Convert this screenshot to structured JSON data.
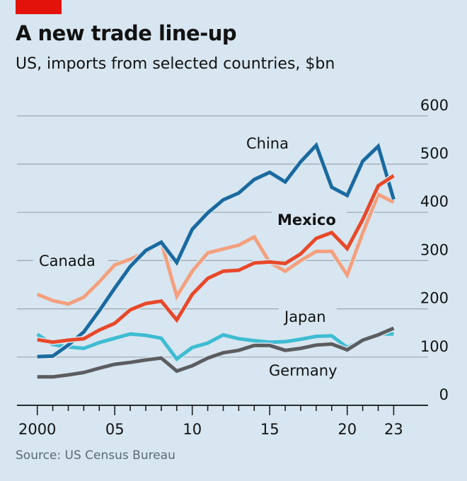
{
  "header": {
    "title": "A new trade line-up",
    "subtitle": "US, imports from selected countries, $bn"
  },
  "footer": {
    "source": "Source: US Census Bureau"
  },
  "colors": {
    "background": "#d7e6f0",
    "tag": "#e3120b",
    "grid": "#9aa7b0"
  },
  "chart_data": {
    "type": "line",
    "title": "A new trade line-up",
    "subtitle": "US, imports from selected countries, $bn",
    "xlabel": "",
    "ylabel": "",
    "x": [
      2000,
      2001,
      2002,
      2003,
      2004,
      2005,
      2006,
      2007,
      2008,
      2009,
      2010,
      2011,
      2012,
      2013,
      2014,
      2015,
      2016,
      2017,
      2018,
      2019,
      2020,
      2021,
      2022,
      2023
    ],
    "xlim": [
      2000,
      2023
    ],
    "ylim": [
      0,
      600
    ],
    "y_ticks": [
      "0",
      "100",
      "200",
      "300",
      "400",
      "500",
      "600"
    ],
    "x_tick_labels": [
      {
        "x": 2000,
        "label": "2000"
      },
      {
        "x": 2005,
        "label": "05"
      },
      {
        "x": 2010,
        "label": "10"
      },
      {
        "x": 2015,
        "label": "15"
      },
      {
        "x": 2020,
        "label": "20"
      },
      {
        "x": 2023,
        "label": "23"
      }
    ],
    "grid": true,
    "y_axis_side": "right",
    "series": [
      {
        "name": "Canada",
        "color": "#f4a07e",
        "bold": false,
        "values": [
          230,
          217,
          210,
          224,
          256,
          291,
          303,
          317,
          339,
          226,
          278,
          316,
          324,
          332,
          349,
          296,
          278,
          300,
          319,
          319,
          270,
          357,
          437,
          421
        ]
      },
      {
        "name": "Japan",
        "color": "#3ebcd2",
        "bold": false,
        "values": [
          147,
          126,
          121,
          118,
          130,
          139,
          148,
          145,
          139,
          96,
          120,
          129,
          146,
          138,
          134,
          131,
          132,
          137,
          143,
          144,
          120,
          135,
          148,
          148
        ]
      },
      {
        "name": "Germany",
        "color": "#5c5d60",
        "bold": false,
        "values": [
          59,
          59,
          63,
          68,
          77,
          85,
          89,
          94,
          98,
          71,
          82,
          98,
          109,
          114,
          124,
          124,
          114,
          118,
          125,
          127,
          115,
          135,
          146,
          160
        ]
      },
      {
        "name": "China",
        "color": "#1a6aa0",
        "bold": false,
        "values": [
          101,
          102,
          125,
          152,
          196,
          243,
          288,
          321,
          338,
          296,
          365,
          399,
          426,
          440,
          468,
          483,
          463,
          505,
          539,
          452,
          435,
          506,
          537,
          427
        ]
      },
      {
        "name": "Mexico",
        "color": "#e8482a",
        "bold": true,
        "values": [
          136,
          131,
          135,
          138,
          156,
          170,
          198,
          211,
          216,
          177,
          230,
          263,
          278,
          280,
          295,
          297,
          294,
          314,
          346,
          358,
          325,
          385,
          455,
          476
        ]
      }
    ]
  }
}
